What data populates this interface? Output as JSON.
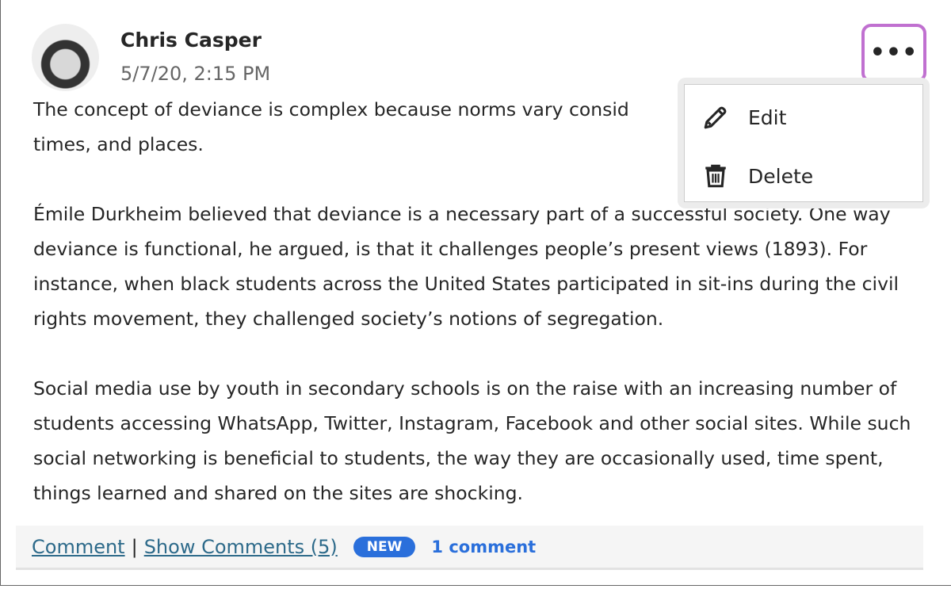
{
  "post": {
    "author": "Chris Casper",
    "date": "5/7/20, 2:15 PM",
    "paragraphs": [
      "The concept of deviance is complex because norms vary consid\ntimes, and places.",
      "Émile Durkheim believed that deviance is a necessary part of a successful society. One way deviance is functional, he argued, is that it challenges people’s present views (1893). For instance, when black students across the United States participated in sit-ins during the civil rights movement, they challenged society’s notions of segregation.",
      "Social media use by youth in secondary schools is on the raise with an increasing number of students accessing WhatsApp, Twitter, Instagram, Facebook and other social sites. While such social networking is beneficial to students, the way they are occasionally used, time spent, things learned and shared on the sites are shocking."
    ]
  },
  "menu": {
    "more_label": "•••",
    "items": [
      {
        "label": "Edit",
        "icon": "pencil-icon"
      },
      {
        "label": "Delete",
        "icon": "trash-icon"
      }
    ]
  },
  "footer": {
    "comment": "Comment",
    "separator": "|",
    "show_comments": "Show Comments (5)",
    "badge": "NEW",
    "new_count": "1 comment"
  },
  "colors": {
    "accent": "#2a6fdb",
    "link": "#2d6a8a",
    "focus": "#c070d0"
  }
}
